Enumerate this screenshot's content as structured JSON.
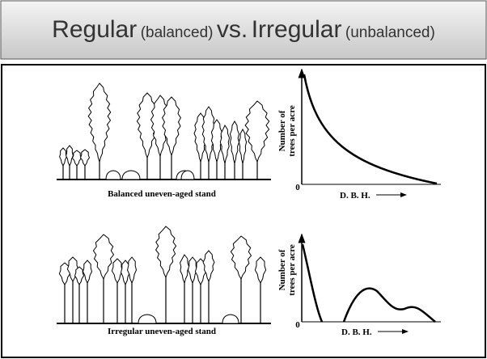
{
  "title": {
    "regular": "Regular",
    "balanced": "(balanced)",
    "vs": "vs.",
    "irregular": "Irregular",
    "unbalanced": "(unbalanced)"
  },
  "panels": [
    {
      "caption": "Balanced uneven-aged stand",
      "y_label": [
        "Number of",
        "trees per acre"
      ],
      "origin": "0",
      "x_label": "D. B. H."
    },
    {
      "caption": "Irregular uneven-aged stand",
      "y_label": [
        "Number of",
        "trees per acre"
      ],
      "origin": "0",
      "x_label": "D. B. H."
    }
  ]
}
